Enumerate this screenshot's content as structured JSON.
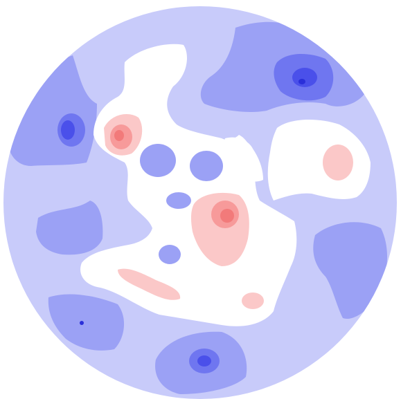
{
  "figure": {
    "kind": "circular-field-map",
    "palette": {
      "background": "#ffffff",
      "disc_base": "#c8cbfa",
      "blue_level_1": "#9ba1f5",
      "blue_level_2": "#6f76f0",
      "blue_level_3": "#4a50ea",
      "blue_peak": "#2a2fd9",
      "neutral": "#ffffff",
      "red_level_1": "#fbc8c8",
      "red_level_2": "#f79a9a",
      "red_level_3": "#f27a7a"
    }
  }
}
